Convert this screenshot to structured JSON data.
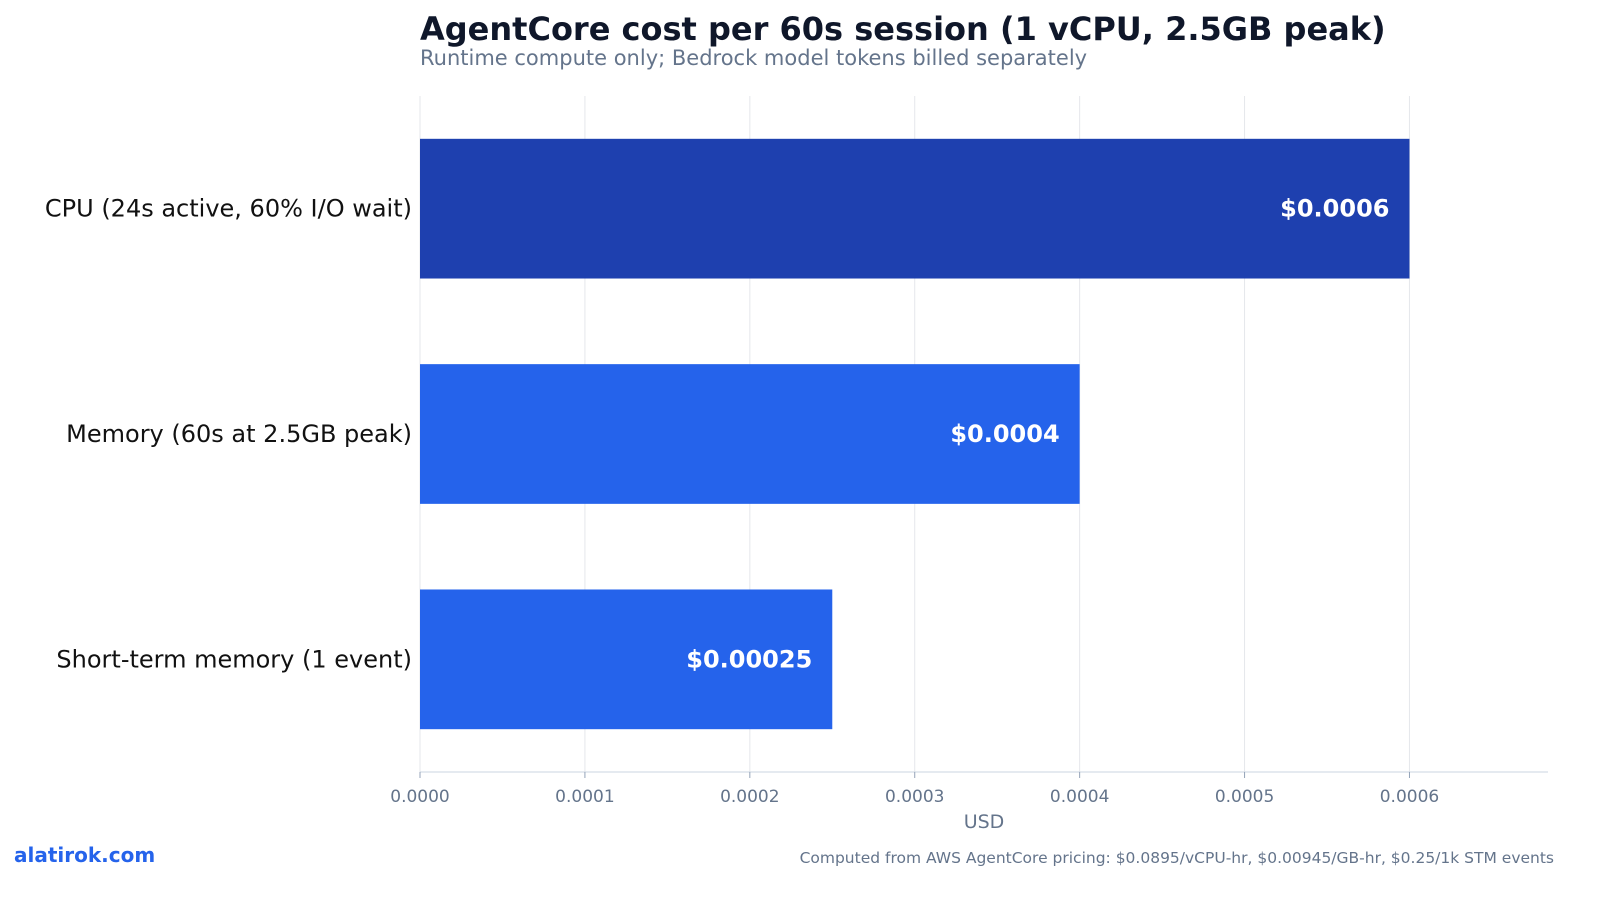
{
  "colors": {
    "highlight_bar": "#1e40af",
    "bar": "#2563eb",
    "grid": "#e5e7eb",
    "axis": "#cbd5e1",
    "brand": "#2563eb"
  },
  "brand": "alatirok.com",
  "footnote": "Computed from AWS AgentCore pricing: $0.0895/vCPU-hr, $0.00945/GB-hr, $0.25/1k STM events",
  "chart_data": {
    "type": "bar",
    "orientation": "horizontal",
    "title": "AgentCore cost per 60s session (1 vCPU, 2.5GB peak)",
    "subtitle": "Runtime compute only; Bedrock model tokens billed separately",
    "categories": [
      "CPU (24s active, 60% I/O wait)",
      "Memory (60s at 2.5GB peak)",
      "Short-term memory (1 event)"
    ],
    "values": [
      0.0006,
      0.0004,
      0.00025
    ],
    "value_labels": [
      "$0.0006",
      "$0.0004",
      "$0.00025"
    ],
    "highlight_index": 0,
    "xlabel": "USD",
    "ylabel": "",
    "xlim": [
      0,
      0.000684
    ],
    "xticks": [
      0,
      0.0001,
      0.0002,
      0.0003,
      0.0004,
      0.0005,
      0.0006
    ],
    "xtick_labels": [
      "0.0000",
      "0.0001",
      "0.0002",
      "0.0003",
      "0.0004",
      "0.0005",
      "0.0006"
    ],
    "grid": "vertical"
  }
}
